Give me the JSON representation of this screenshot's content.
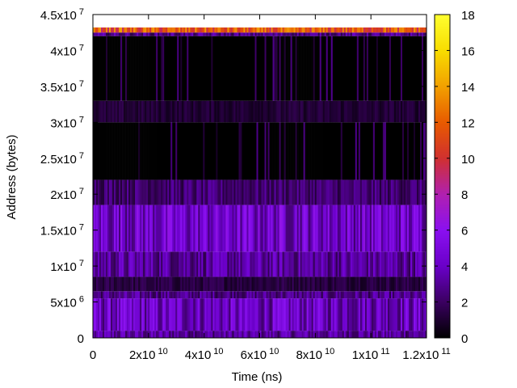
{
  "chart_data": {
    "type": "heatmap",
    "title": "",
    "xlabel": "Time (ns)",
    "ylabel": "Address (bytes)",
    "xlim": [
      0,
      120000000000
    ],
    "ylim": [
      0,
      45000000
    ],
    "x_ticks": [
      {
        "value": 0,
        "mant": "0",
        "exp": ""
      },
      {
        "value": 20000000000,
        "mant": "2x10",
        "exp": "10"
      },
      {
        "value": 40000000000,
        "mant": "4x10",
        "exp": "10"
      },
      {
        "value": 60000000000,
        "mant": "6x10",
        "exp": "10"
      },
      {
        "value": 80000000000,
        "mant": "8x10",
        "exp": "10"
      },
      {
        "value": 100000000000,
        "mant": "1x10",
        "exp": "11"
      },
      {
        "value": 120000000000,
        "mant": "1.2x10",
        "exp": "11"
      }
    ],
    "y_ticks": [
      {
        "value": 0,
        "mant": "0",
        "exp": ""
      },
      {
        "value": 5000000,
        "mant": "5x10",
        "exp": "6"
      },
      {
        "value": 10000000,
        "mant": "1x10",
        "exp": "7"
      },
      {
        "value": 15000000,
        "mant": "1.5x10",
        "exp": "7"
      },
      {
        "value": 20000000,
        "mant": "2x10",
        "exp": "7"
      },
      {
        "value": 25000000,
        "mant": "2.5x10",
        "exp": "7"
      },
      {
        "value": 30000000,
        "mant": "3x10",
        "exp": "7"
      },
      {
        "value": 35000000,
        "mant": "3.5x10",
        "exp": "7"
      },
      {
        "value": 40000000,
        "mant": "4x10",
        "exp": "7"
      },
      {
        "value": 45000000,
        "mant": "4.5x10",
        "exp": "7"
      }
    ],
    "colorbar": {
      "min": 0,
      "max": 18,
      "ticks": [
        "0",
        "2",
        "4",
        "6",
        "8",
        "10",
        "12",
        "14",
        "16",
        "18"
      ],
      "palette": [
        "#000000",
        "#3a0060",
        "#6a00c8",
        "#8a10f0",
        "#b020b0",
        "#d03030",
        "#e85a00",
        "#f2a000",
        "#f8dc00",
        "#ffff30"
      ]
    },
    "address_bands": [
      {
        "y_range": [
          0,
          1000000
        ],
        "level": 3.5
      },
      {
        "y_range": [
          1000000,
          5500000
        ],
        "level": 4.5
      },
      {
        "y_range": [
          5500000,
          6500000
        ],
        "level": 3.0
      },
      {
        "y_range": [
          6500000,
          8500000
        ],
        "level": 1.5
      },
      {
        "y_range": [
          8500000,
          12000000
        ],
        "level": 3.5
      },
      {
        "y_range": [
          12000000,
          18500000
        ],
        "level": 4.8
      },
      {
        "y_range": [
          18500000,
          22000000
        ],
        "level": 2.5
      },
      {
        "y_range": [
          22000000,
          30000000
        ],
        "level": 0.3
      },
      {
        "y_range": [
          30000000,
          33000000
        ],
        "level": 1.2
      },
      {
        "y_range": [
          33000000,
          42000000
        ],
        "level": 0.3
      },
      {
        "y_range": [
          42000000,
          42500000
        ],
        "level": 3.0
      },
      {
        "y_range": [
          42500000,
          43200000
        ],
        "level": 11.5
      },
      {
        "y_range": [
          43200000,
          45000000
        ],
        "level": 0
      }
    ],
    "grid": false,
    "legend": "none"
  }
}
